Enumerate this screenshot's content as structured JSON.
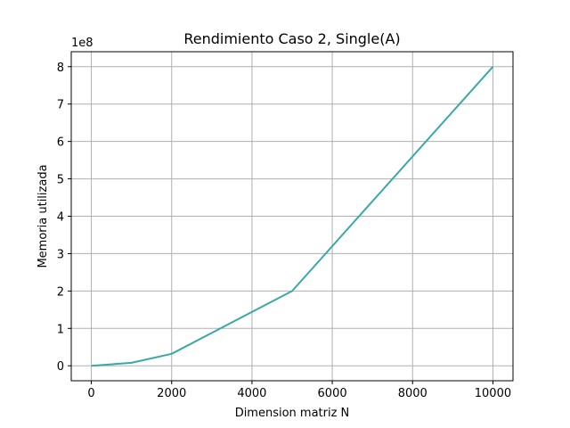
{
  "chart_data": {
    "type": "line",
    "title": "Rendimiento Caso 2, Single(A)",
    "xlabel": "Dimension matriz N",
    "ylabel": "Memoria utilizada",
    "y_offset_label": "1e8",
    "x_ticks": [
      0,
      2000,
      4000,
      6000,
      8000,
      10000
    ],
    "x_tick_labels": [
      "0",
      "2000",
      "4000",
      "6000",
      "8000",
      "10000"
    ],
    "y_ticks": [
      0,
      1,
      2,
      3,
      4,
      5,
      6,
      7,
      8
    ],
    "y_tick_labels": [
      "0",
      "1",
      "2",
      "3",
      "4",
      "5",
      "6",
      "7",
      "8"
    ],
    "xlim": [
      -500,
      10500
    ],
    "ylim": [
      -0.4,
      8.4
    ],
    "grid": true,
    "line_color": "#3aa9a6",
    "series": [
      {
        "x": [
          0,
          1000,
          2000,
          5000,
          10000
        ],
        "values": [
          0.0,
          0.08,
          0.32,
          2.0,
          8.0
        ]
      }
    ]
  }
}
